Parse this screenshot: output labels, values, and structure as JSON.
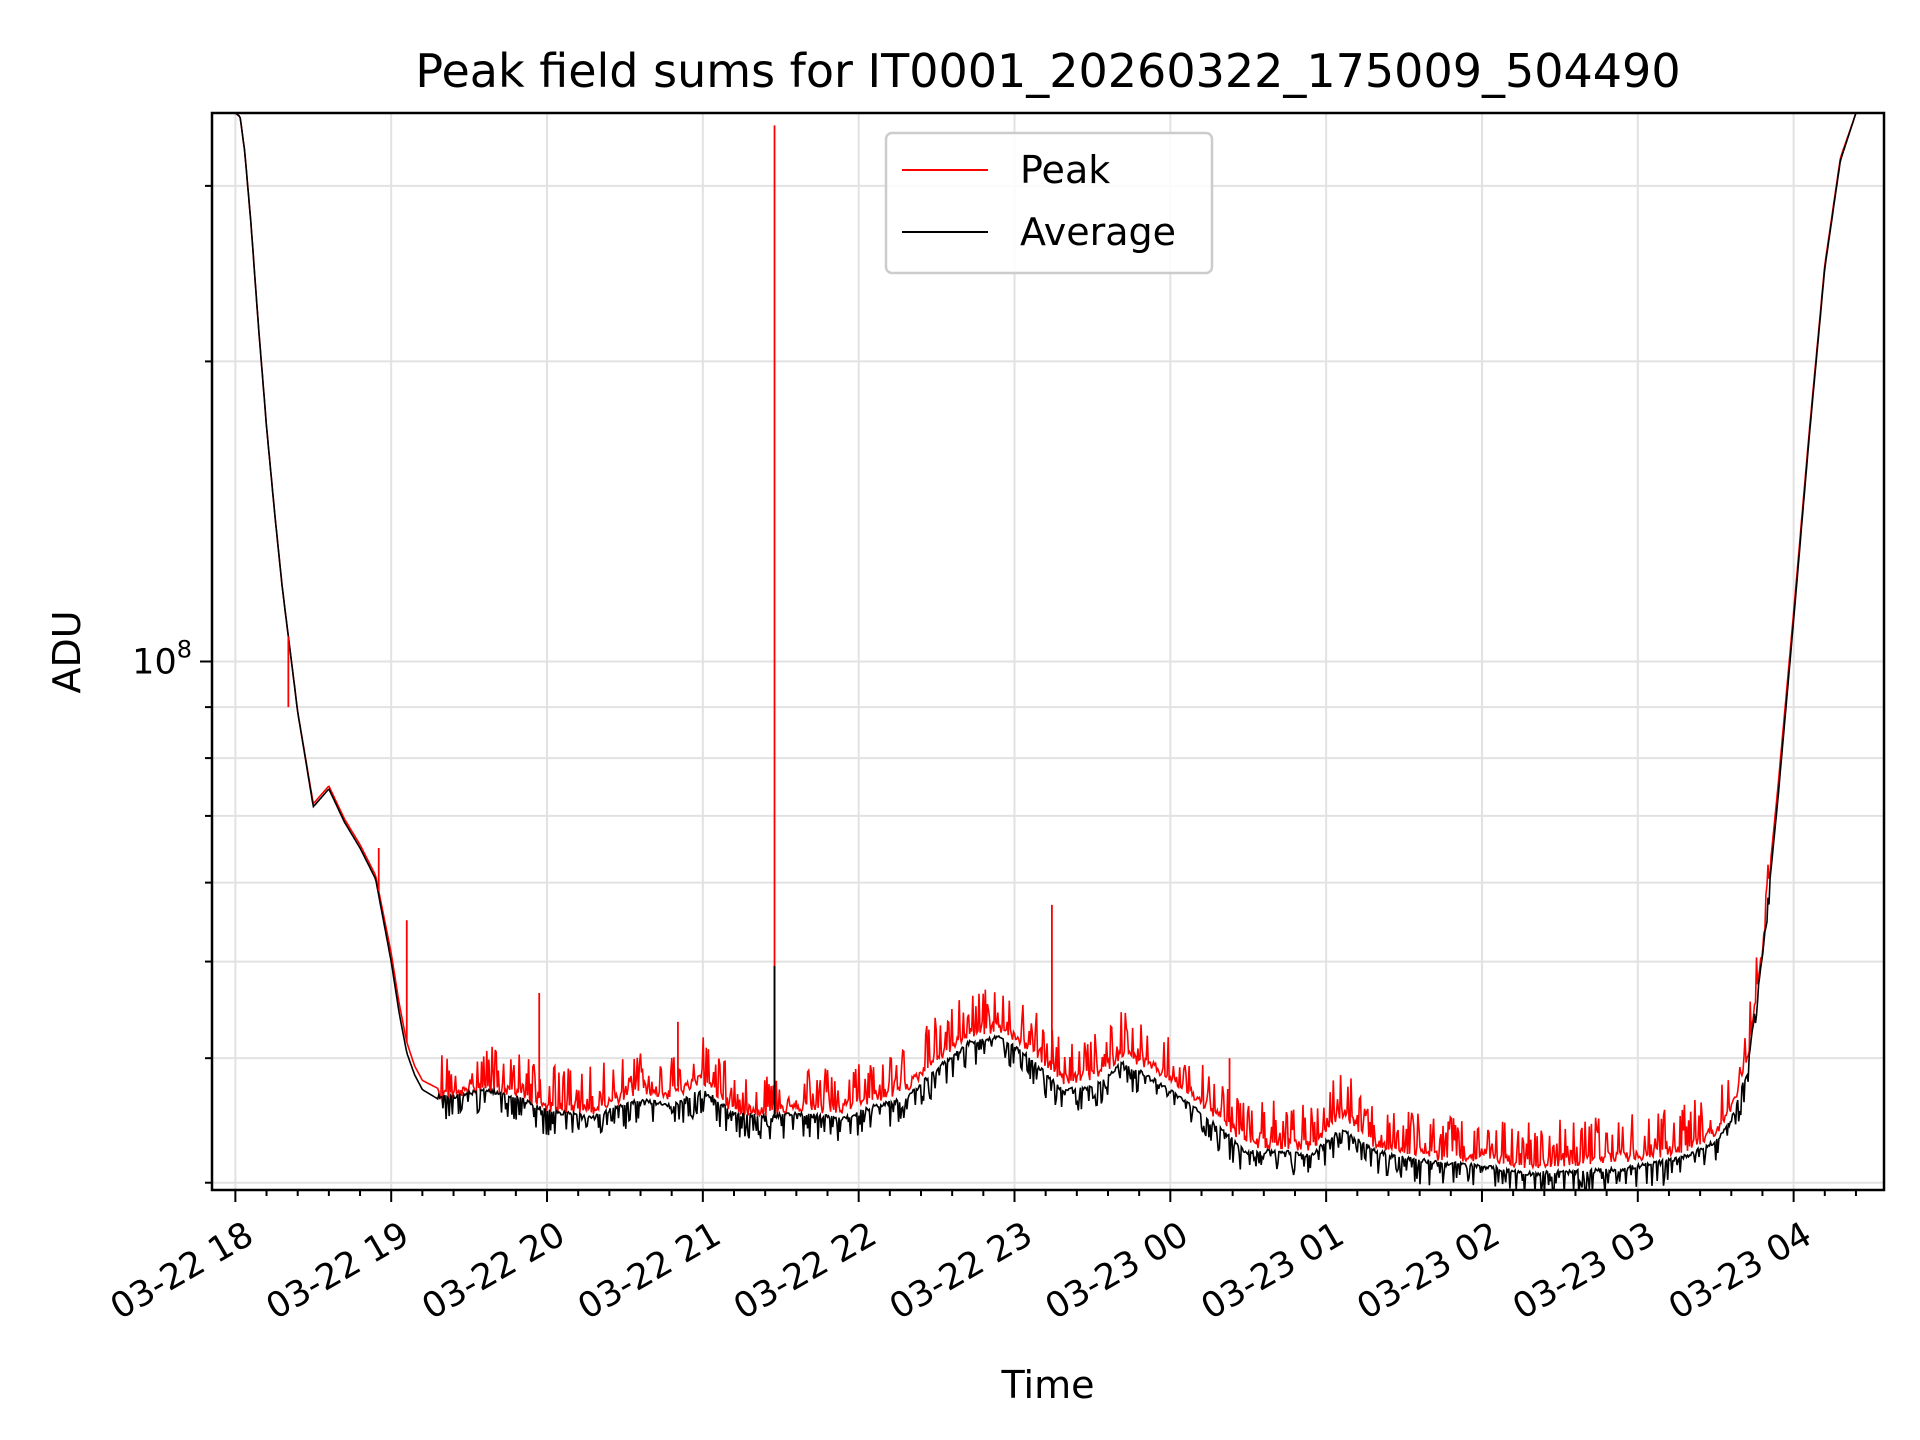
{
  "chart_data": {
    "type": "line",
    "title": "Peak field sums for IT0001_20260322_175009_504490",
    "xlabel": "Time",
    "ylabel": "ADU",
    "y_scale": "log",
    "ylim": [
      29500000.0,
      355000000.0
    ],
    "xlim": [
      -0.15,
      10.58
    ],
    "grid": true,
    "legend_position": "top-center",
    "x_ticks": [
      {
        "value": 0,
        "label": "03-22 18"
      },
      {
        "value": 1,
        "label": "03-22 19"
      },
      {
        "value": 2,
        "label": "03-22 20"
      },
      {
        "value": 3,
        "label": "03-22 21"
      },
      {
        "value": 4,
        "label": "03-22 22"
      },
      {
        "value": 5,
        "label": "03-22 23"
      },
      {
        "value": 6,
        "label": "03-23 00"
      },
      {
        "value": 7,
        "label": "03-23 01"
      },
      {
        "value": 8,
        "label": "03-23 02"
      },
      {
        "value": 9,
        "label": "03-23 03"
      },
      {
        "value": 10,
        "label": "03-23 04"
      }
    ],
    "y_major_ticks": [
      {
        "value": 100000000,
        "label_base": "10",
        "label_exp": "8"
      }
    ],
    "y_minor_ticks": [
      30000000,
      40000000,
      50000000,
      60000000,
      70000000,
      80000000,
      90000000,
      200000000,
      300000000
    ],
    "x_unit": "hours since 03-22 18:00",
    "series": [
      {
        "name": "Peak",
        "color": "#ff0000",
        "x": [
          -0.15,
          0.0,
          0.03,
          0.06,
          0.1,
          0.15,
          0.2,
          0.25,
          0.3,
          0.4,
          0.5,
          0.6,
          0.7,
          0.8,
          0.9,
          1.0,
          1.05,
          1.1,
          1.15,
          1.2,
          1.3,
          1.4,
          1.5,
          1.6,
          1.8,
          2.0,
          2.3,
          2.6,
          2.8,
          3.0,
          3.2,
          3.43,
          3.6,
          3.9,
          4.1,
          4.3,
          4.5,
          4.7,
          4.9,
          5.1,
          5.3,
          5.5,
          5.7,
          5.9,
          6.1,
          6.3,
          6.5,
          6.7,
          6.9,
          7.1,
          7.3,
          7.5,
          7.7,
          8.0,
          8.3,
          8.6,
          8.9,
          9.1,
          9.3,
          9.5,
          9.6,
          9.7,
          9.8,
          9.9,
          10.0,
          10.1,
          10.2,
          10.3,
          10.4,
          10.58
        ],
        "y": [
          355000000.0,
          355000000.0,
          352000000.0,
          325000000.0,
          275000000.0,
          215000000.0,
          172000000.0,
          142000000.0,
          119000000.0,
          89000000.0,
          72000000.0,
          75000000.0,
          69500000.0,
          65500000.0,
          61000000.0,
          51000000.0,
          45500000.0,
          41500000.0,
          39300000.0,
          38000000.0,
          37300000.0,
          37300000.0,
          37600000.0,
          38000000.0,
          37500000.0,
          36200000.0,
          36000000.0,
          37800000.0,
          37200000.0,
          38600000.0,
          36000000.0,
          35800000.0,
          36200000.0,
          36000000.0,
          37000000.0,
          37800000.0,
          40500000.0,
          42800000.0,
          43600000.0,
          41500000.0,
          38600000.0,
          38800000.0,
          41000000.0,
          39600000.0,
          37800000.0,
          35500000.0,
          33200000.0,
          33300000.0,
          33000000.0,
          35800000.0,
          33400000.0,
          32800000.0,
          32400000.0,
          32200000.0,
          31800000.0,
          32000000.0,
          32200000.0,
          32500000.0,
          33000000.0,
          34200000.0,
          36000000.0,
          40000000.0,
          52000000.0,
          75000000.0,
          112000000.0,
          170000000.0,
          250000000.0,
          320000000.0,
          355000000.0,
          355000000.0
        ]
      },
      {
        "name": "Average",
        "color": "#000000",
        "x": [
          -0.15,
          0.0,
          0.03,
          0.06,
          0.1,
          0.15,
          0.2,
          0.25,
          0.3,
          0.4,
          0.5,
          0.6,
          0.7,
          0.8,
          0.9,
          1.0,
          1.05,
          1.1,
          1.15,
          1.2,
          1.3,
          1.4,
          1.5,
          1.6,
          1.8,
          2.0,
          2.3,
          2.6,
          2.8,
          3.0,
          3.2,
          3.43,
          3.6,
          3.9,
          4.1,
          4.3,
          4.5,
          4.7,
          4.9,
          5.1,
          5.3,
          5.5,
          5.7,
          5.9,
          6.1,
          6.3,
          6.5,
          6.7,
          6.9,
          7.1,
          7.3,
          7.5,
          7.7,
          8.0,
          8.3,
          8.6,
          8.9,
          9.1,
          9.3,
          9.5,
          9.6,
          9.7,
          9.8,
          9.9,
          10.0,
          10.1,
          10.2,
          10.3,
          10.4,
          10.58
        ],
        "y": [
          355000000.0,
          355000000.0,
          352000000.0,
          325000000.0,
          275000000.0,
          215000000.0,
          172000000.0,
          142000000.0,
          119000000.0,
          89000000.0,
          71500000.0,
          74500000.0,
          69000000.0,
          65000000.0,
          60500000.0,
          50000000.0,
          44500000.0,
          40500000.0,
          38500000.0,
          37200000.0,
          36400000.0,
          36400000.0,
          36700000.0,
          37000000.0,
          36400000.0,
          35200000.0,
          34800000.0,
          36200000.0,
          35600000.0,
          37000000.0,
          35000000.0,
          34800000.0,
          35000000.0,
          34600000.0,
          35600000.0,
          36200000.0,
          38800000.0,
          41200000.0,
          41800000.0,
          39800000.0,
          37000000.0,
          37200000.0,
          39400000.0,
          37800000.0,
          36000000.0,
          34000000.0,
          32000000.0,
          32100000.0,
          31800000.0,
          33800000.0,
          32200000.0,
          31600000.0,
          31300000.0,
          31000000.0,
          30500000.0,
          30600000.0,
          30800000.0,
          31200000.0,
          31700000.0,
          32800000.0,
          34500000.0,
          38500000.0,
          50500000.0,
          73000000.0,
          110000000.0,
          168000000.0,
          248000000.0,
          318000000.0,
          355000000.0,
          355000000.0
        ]
      }
    ],
    "spikes": [
      {
        "series": "Peak",
        "x": 0.34,
        "y": 90000000.0
      },
      {
        "series": "Peak",
        "x": 0.92,
        "y": 65000000.0
      },
      {
        "series": "Peak",
        "x": 1.1,
        "y": 55000000.0
      },
      {
        "series": "Peak",
        "x": 1.95,
        "y": 46500000.0
      },
      {
        "series": "Peak",
        "x": 2.84,
        "y": 43500000.0
      },
      {
        "series": "Peak",
        "x": 3.46,
        "y": 345000000.0
      },
      {
        "series": "Average",
        "x": 3.46,
        "y": 49500000.0
      },
      {
        "series": "Peak",
        "x": 5.24,
        "y": 57000000.0
      },
      {
        "series": "Peak",
        "x": 6.38,
        "y": 40000000.0
      }
    ],
    "legend": [
      {
        "name": "Peak",
        "color": "#ff0000"
      },
      {
        "name": "Average",
        "color": "#000000"
      }
    ]
  }
}
